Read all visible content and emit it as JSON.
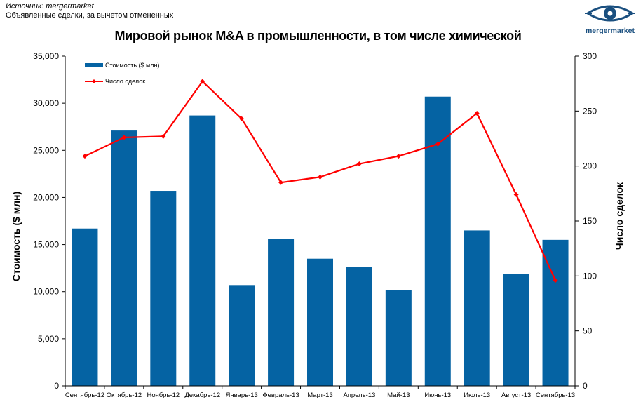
{
  "source": {
    "line1": "Источник: mergermarket",
    "line2": "Объявленные сделки, за вычетом отмененных"
  },
  "logo": {
    "text": "mergermarket",
    "icon": "mergermarket-eye-logo",
    "color": "#1a4f7f"
  },
  "colors": {
    "bars": "#0563a3",
    "line": "#ff0000"
  },
  "chart_data": {
    "type": "bar",
    "title": "Мировой рынок  M&A в промышленности, в том числе химической",
    "ylabel": "Стоимость ($ млн)",
    "y2label": "Число сделок",
    "categories": [
      "Сентябрь-12",
      "Октябрь-12",
      "Ноябрь-12",
      "Декабрь-12",
      "Январь-13",
      "Февраль-13",
      "Март-13",
      "Апрель-13",
      "Май-13",
      "Июнь-13",
      "Июль-13",
      "Август-13",
      "Сентябрь-13"
    ],
    "ylim": [
      0,
      35000
    ],
    "y2lim": [
      0,
      300
    ],
    "yticks": [
      "0",
      "5,000",
      "10,000",
      "15,000",
      "20,000",
      "25,000",
      "30,000",
      "35,000"
    ],
    "y2ticks": [
      "0",
      "50",
      "100",
      "150",
      "200",
      "250",
      "300"
    ],
    "series": [
      {
        "name": "Стоимость ($ млн)",
        "type": "bar",
        "axis": "left",
        "values": [
          16700,
          27100,
          20700,
          28700,
          10700,
          15600,
          13500,
          12600,
          10200,
          30700,
          16500,
          11900,
          15500
        ]
      },
      {
        "name": "Число сделок",
        "type": "line",
        "axis": "right",
        "values": [
          209,
          226,
          227,
          277,
          243,
          185,
          190,
          202,
          209,
          220,
          248,
          174,
          96
        ]
      }
    ],
    "legend": "top-left"
  }
}
